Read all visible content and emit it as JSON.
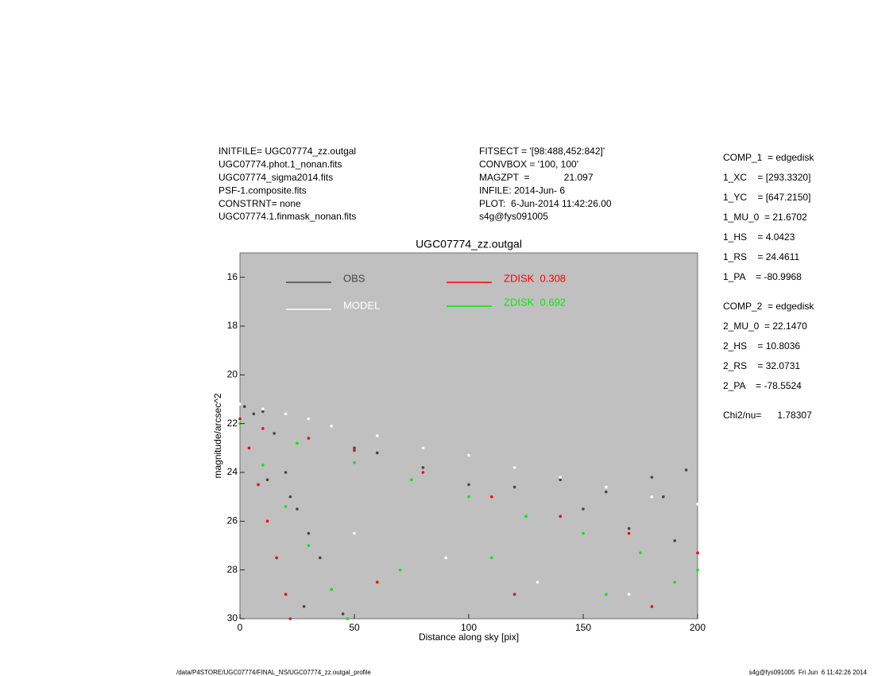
{
  "header": {
    "left": [
      "INITFILE= UGC07774_zz.outgal",
      "UGC07774.phot.1_nonan.fits",
      "UGC07774_sigma2014.fits",
      "PSF-1.composite.fits",
      "CONSTRNT= none",
      "UGC07774.1.finmask_nonan.fits"
    ],
    "middle": [
      "FITSECT = '[98:488,452:842]'",
      "CONVBOX = '100, 100'",
      "MAGZPT  =             21.097",
      "INFILE: 2014-Jun- 6",
      "PLOT:  6-Jun-2014 11:42:26.00",
      "s4g@fys091005"
    ]
  },
  "params": [
    [
      "COMP_1  = edgedisk",
      "1_XC    = [293.3320]",
      "1_YC    = [647.2150]",
      "1_MU_0  = 21.6702",
      "1_HS    = 4.0423",
      "1_RS    = 24.4611",
      "1_PA    = -80.9968"
    ],
    [
      "COMP_2  = edgedisk",
      "2_MU_0  = 22.1470",
      "2_HS    = 10.8036",
      "2_RS    = 32.0731",
      "2_PA    = -78.5524"
    ],
    [
      "Chi2/nu=      1.78307"
    ]
  ],
  "footer": {
    "left": "/data/P4STORE/UGC07774/FINAL_NS/UGC07774_zz.outgal_profile",
    "right": "s4g@fys091005  Fri Jun  6 11:42:26 2014"
  },
  "chart_data": {
    "type": "scatter",
    "title": "UGC07774_zz.outgal",
    "x_label": "Distance along sky [pix]",
    "y_label": "magnitude/arcsec^2",
    "xlim": [
      0,
      200
    ],
    "ylim": [
      15,
      30
    ],
    "y_inverted": true,
    "xticks": [
      0,
      50,
      100,
      150,
      200
    ],
    "yticks": [
      16,
      18,
      20,
      22,
      24,
      26,
      28,
      30
    ],
    "background": "#c0c0c0",
    "series": [
      {
        "name": "OBS",
        "color": "#464646",
        "x": [
          2,
          6,
          10,
          15,
          20,
          25,
          30,
          35,
          40,
          50,
          60,
          80,
          100,
          120,
          140,
          160,
          180,
          195,
          12,
          22,
          28,
          45,
          150,
          170,
          190,
          185
        ],
        "values": [
          21.3,
          21.6,
          21.5,
          22.4,
          24.0,
          25.5,
          26.5,
          27.5,
          28.8,
          23.0,
          23.2,
          23.8,
          24.5,
          24.6,
          24.3,
          24.8,
          24.2,
          23.9,
          24.3,
          25.0,
          29.5,
          29.8,
          25.5,
          26.3,
          26.8,
          25.0
        ]
      },
      {
        "name": "MODEL",
        "color": "#ffffff",
        "x": [
          0,
          10,
          20,
          30,
          40,
          60,
          80,
          100,
          120,
          140,
          160,
          180,
          200,
          50,
          90,
          130,
          170
        ],
        "values": [
          21.2,
          21.4,
          21.6,
          21.8,
          22.1,
          22.5,
          23.0,
          23.3,
          23.8,
          24.2,
          24.6,
          25.0,
          25.3,
          26.5,
          27.5,
          28.5,
          29.0
        ]
      },
      {
        "name": "ZDISK  0.308",
        "color": "#ff0000",
        "x": [
          0,
          4,
          8,
          12,
          16,
          20,
          22,
          10,
          30,
          50,
          80,
          110,
          140,
          170,
          200,
          60,
          120,
          180
        ],
        "values": [
          21.8,
          23.0,
          24.5,
          26.0,
          27.5,
          29.0,
          30.0,
          22.2,
          22.6,
          23.1,
          24.0,
          25.0,
          25.8,
          26.5,
          27.3,
          28.5,
          29.0,
          29.5
        ]
      },
      {
        "name": "ZDISK  0.692",
        "color": "#00ee00",
        "x": [
          0,
          10,
          20,
          30,
          40,
          47,
          25,
          50,
          75,
          100,
          125,
          150,
          175,
          200,
          70,
          110,
          160,
          190
        ],
        "values": [
          22.0,
          23.7,
          25.4,
          27.0,
          28.8,
          30.0,
          22.8,
          23.6,
          24.3,
          25.0,
          25.8,
          26.5,
          27.3,
          28.0,
          28.0,
          27.5,
          29.0,
          28.5
        ]
      }
    ]
  }
}
